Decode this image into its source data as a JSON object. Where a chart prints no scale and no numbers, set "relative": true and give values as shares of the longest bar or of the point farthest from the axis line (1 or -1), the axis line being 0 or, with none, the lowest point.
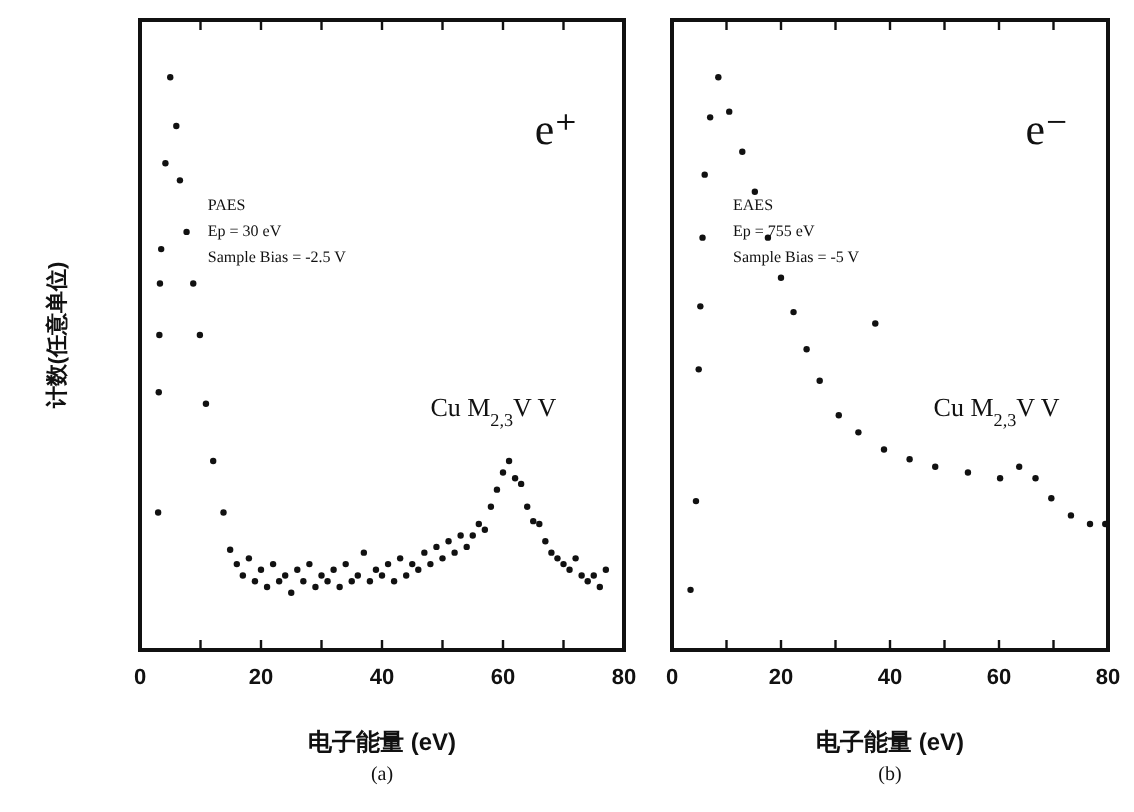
{
  "chart_data": [
    {
      "type": "scatter",
      "relative": true,
      "ylabel": "计数(任意单位)",
      "xlabel": "电子能量 (eV)",
      "tick_labels": "x",
      "grid": false,
      "marker": "circle",
      "xlim": [
        0,
        80
      ],
      "xticks": [
        0,
        {
          "value": 10,
          "label": null
        },
        20,
        {
          "value": 30,
          "label": null
        },
        40,
        {
          "value": 50,
          "label": null
        },
        60,
        {
          "value": 70,
          "label": null
        },
        80
      ],
      "annotations": [
        "e⁺",
        "PAES",
        "Ep = 30 eV",
        "Sample Bias = -2.5 V",
        "Cu M$_{2,3}$V V",
        "(a)"
      ],
      "series": [
        {
          "color": "#111111",
          "x": [
            3.0,
            3.1,
            3.2,
            3.3,
            3.5,
            4.2,
            5.0,
            6.0,
            6.6,
            7.7,
            8.8,
            9.9,
            10.9,
            12.1,
            13.8,
            14.9,
            16,
            17,
            18,
            19,
            20,
            21,
            22,
            23,
            24,
            25,
            26,
            27,
            28,
            29,
            30,
            31,
            32,
            33,
            34,
            35,
            36,
            37,
            38,
            39,
            40,
            41,
            42,
            43,
            44,
            45,
            46,
            47,
            48,
            49,
            50,
            51,
            52,
            53,
            54,
            55,
            56,
            57,
            58,
            59,
            60,
            61,
            62,
            63,
            64,
            65,
            66,
            67,
            68,
            69,
            70,
            71,
            72,
            73,
            74,
            75,
            76,
            77
          ],
          "values": [
            0.24,
            0.45,
            0.55,
            0.64,
            0.7,
            0.85,
            1.0,
            0.915,
            0.82,
            0.73,
            0.64,
            0.55,
            0.43,
            0.33,
            0.24,
            0.175,
            0.15,
            0.13,
            0.16,
            0.12,
            0.14,
            0.11,
            0.15,
            0.12,
            0.13,
            0.1,
            0.14,
            0.12,
            0.15,
            0.11,
            0.13,
            0.12,
            0.14,
            0.11,
            0.15,
            0.12,
            0.13,
            0.17,
            0.12,
            0.14,
            0.13,
            0.15,
            0.12,
            0.16,
            0.13,
            0.15,
            0.14,
            0.17,
            0.15,
            0.18,
            0.16,
            0.19,
            0.17,
            0.2,
            0.18,
            0.2,
            0.22,
            0.21,
            0.25,
            0.28,
            0.31,
            0.33,
            0.3,
            0.29,
            0.25,
            0.225,
            0.22,
            0.19,
            0.17,
            0.16,
            0.15,
            0.14,
            0.16,
            0.13,
            0.12,
            0.13,
            0.11,
            0.14
          ]
        }
      ]
    },
    {
      "type": "scatter",
      "relative": true,
      "xlabel": "电子能量 (eV)",
      "tick_labels": "x",
      "grid": false,
      "marker": "circle",
      "xlim": [
        0,
        80
      ],
      "xticks": [
        0,
        {
          "value": 10,
          "label": null
        },
        20,
        {
          "value": 30,
          "label": null
        },
        40,
        {
          "value": 50,
          "label": null
        },
        60,
        {
          "value": 70,
          "label": null
        },
        80
      ],
      "annotations": [
        "e⁻",
        "EAES",
        "Ep = 755 eV",
        "Sample Bias = -5 V",
        "Cu M$_{2,3}$V V",
        "(b)"
      ],
      "series": [
        {
          "color": "#111111",
          "x": [
            3.4,
            4.4,
            4.9,
            5.2,
            5.6,
            6.0,
            7.0,
            8.5,
            10.5,
            12.9,
            15.2,
            17.6,
            20.0,
            22.3,
            24.7,
            27.1,
            30.6,
            34.2,
            37.3,
            38.9,
            43.6,
            48.3,
            54.3,
            60.2,
            63.7,
            66.7,
            69.6,
            73.2,
            76.7,
            79.5
          ],
          "values": [
            0.105,
            0.26,
            0.49,
            0.6,
            0.72,
            0.83,
            0.93,
            1.0,
            0.94,
            0.87,
            0.8,
            0.72,
            0.65,
            0.59,
            0.525,
            0.47,
            0.41,
            0.38,
            0.57,
            0.35,
            0.333,
            0.32,
            0.31,
            0.3,
            0.32,
            0.3,
            0.265,
            0.235,
            0.22,
            0.22
          ]
        }
      ]
    }
  ]
}
